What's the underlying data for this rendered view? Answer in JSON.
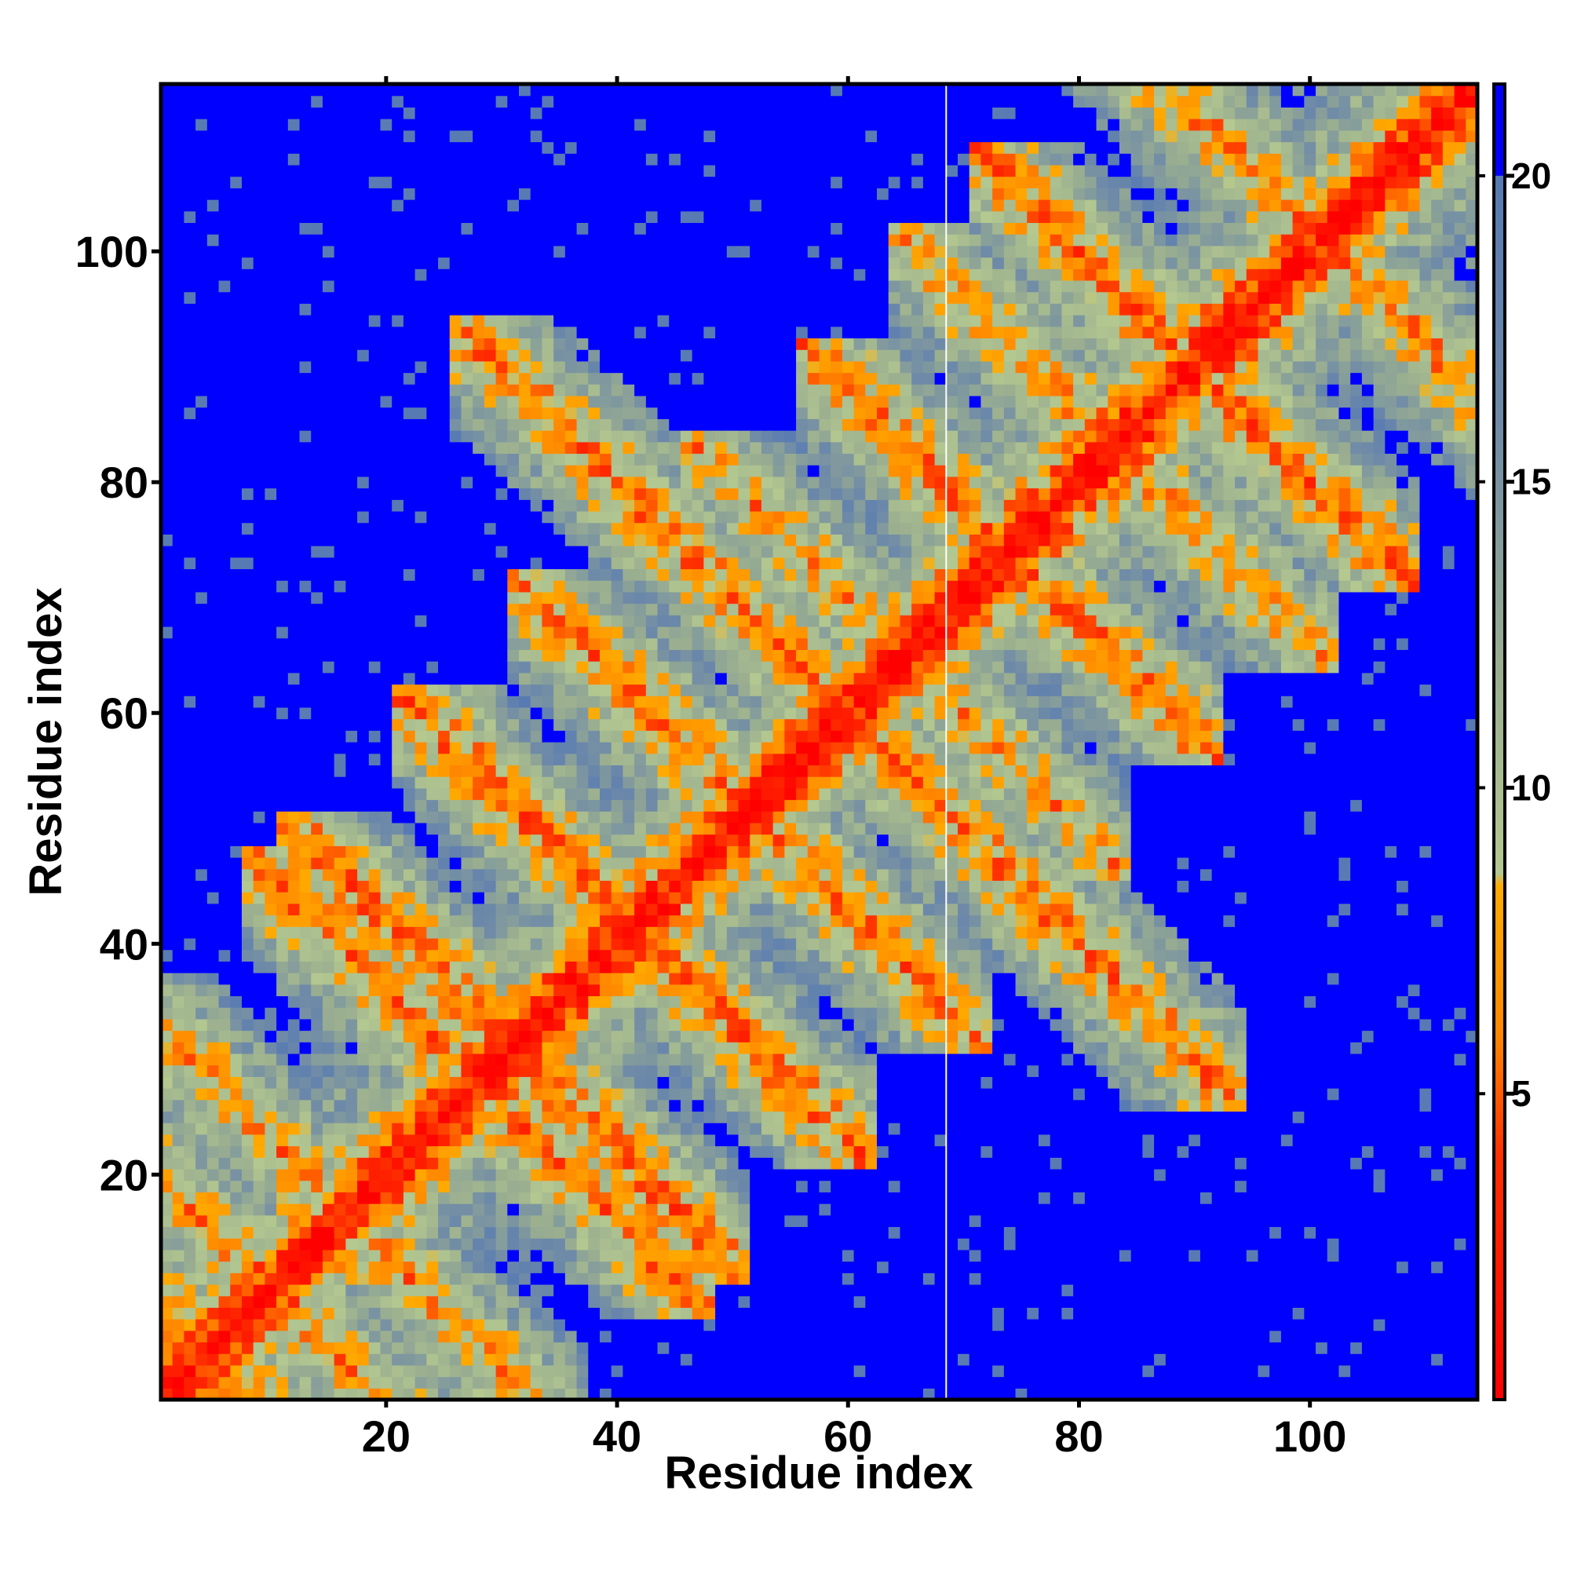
{
  "chart_data": {
    "type": "heatmap",
    "title": "",
    "xlabel": "Residue index",
    "ylabel": "Residue index",
    "n_residues": 114,
    "xlim": [
      1,
      114
    ],
    "ylim": [
      1,
      114
    ],
    "x_ticks": [
      {
        "value": 20,
        "label": "20"
      },
      {
        "value": 40,
        "label": "40"
      },
      {
        "value": 60,
        "label": "60"
      },
      {
        "value": 80,
        "label": "80"
      },
      {
        "value": 100,
        "label": "100"
      }
    ],
    "y_ticks": [
      {
        "value": 20,
        "label": "20"
      },
      {
        "value": 40,
        "label": "40"
      },
      {
        "value": 60,
        "label": "60"
      },
      {
        "value": 80,
        "label": "80"
      },
      {
        "value": 100,
        "label": "100"
      }
    ],
    "colorbar": {
      "range": [
        0,
        21.5
      ],
      "ticks": [
        {
          "value": 5,
          "label": "5"
        },
        {
          "value": 10,
          "label": "10"
        },
        {
          "value": 15,
          "label": "15"
        },
        {
          "value": 20,
          "label": "20"
        }
      ],
      "stops": [
        {
          "value": 0,
          "color": "#ff0000"
        },
        {
          "value": 4,
          "color": "#ff3000"
        },
        {
          "value": 6,
          "color": "#ff8800"
        },
        {
          "value": 8.4,
          "color": "#ffaa00"
        },
        {
          "value": 8.6,
          "color": "#b4c890"
        },
        {
          "value": 12,
          "color": "#9aae90"
        },
        {
          "value": 16,
          "color": "#6e8aa8"
        },
        {
          "value": 21.5,
          "color": "#4f74b8"
        }
      ],
      "cutoff_value": 20,
      "cutoff_color": "#0000ff"
    },
    "gap_at_residue": 69,
    "diagonal_band": {
      "core_width": 2.5,
      "halo_width": 6.5
    },
    "contacts": [
      {
        "residues": [
          2,
          7
        ],
        "kind": "anti",
        "strength": 0.9
      },
      {
        "residues": [
          10,
          23
        ],
        "kind": "anti",
        "strength": 0.5
      },
      {
        "residues": [
          22,
          34
        ],
        "kind": "anti",
        "strength": 0.7
      },
      {
        "residues": [
          25,
          37
        ],
        "kind": "anti",
        "strength": 0.8
      },
      {
        "residues": [
          35,
          48
        ],
        "kind": "anti",
        "strength": 0.8
      },
      {
        "residues": [
          45,
          58
        ],
        "kind": "anti",
        "strength": 0.7
      },
      {
        "residues": [
          40,
          80
        ],
        "kind": "anti",
        "strength": 0.7
      },
      {
        "residues": [
          45,
          75
        ],
        "kind": "anti",
        "strength": 0.5
      },
      {
        "residues": [
          70,
          78
        ],
        "kind": "anti",
        "strength": 0.7
      },
      {
        "residues": [
          85,
          95
        ],
        "kind": "anti",
        "strength": 0.8
      },
      {
        "residues": [
          92,
          110
        ],
        "kind": "anti",
        "strength": 0.6
      },
      {
        "residues": [
          78,
          88
        ],
        "kind": "anti",
        "strength": 0.5
      },
      {
        "residues": [
          5,
          15
        ],
        "kind": "anti",
        "strength": 0.5
      },
      {
        "residues": [
          60,
          70
        ],
        "kind": "anti",
        "strength": 0.4
      }
    ]
  }
}
